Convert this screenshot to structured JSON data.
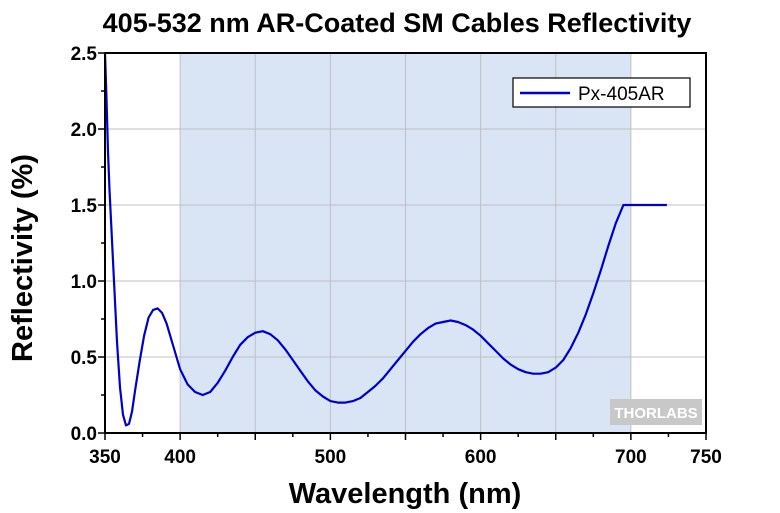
{
  "chart_data": {
    "type": "line",
    "title": "405-532 nm AR-Coated SM Cables Reflectivity",
    "xlabel": "Wavelength (nm)",
    "ylabel": "Reflectivity (%)",
    "xlim": [
      350,
      750
    ],
    "ylim": [
      0,
      2.5
    ],
    "x_ticks": [
      350,
      400,
      500,
      600,
      700,
      750
    ],
    "x_tick_labels": [
      "350",
      "400",
      "500",
      "600",
      "700",
      "750"
    ],
    "y_ticks": [
      0,
      0.5,
      1.0,
      1.5,
      2.0,
      2.5
    ],
    "y_tick_labels": [
      "0.0",
      "0.5",
      "1.0",
      "1.5",
      "2.0",
      "2.5"
    ],
    "grid": true,
    "legend_position": "top-right",
    "shaded_band": {
      "x_start": 400,
      "x_end": 700,
      "color": "#d9e4f5"
    },
    "series": [
      {
        "name": "Px-405AR",
        "color": "#0000cc",
        "x": [
          350,
          351,
          352,
          353,
          354,
          356,
          358,
          360,
          362,
          364,
          366,
          368,
          370,
          373,
          376,
          379,
          382,
          385,
          388,
          391,
          394,
          397,
          400,
          405,
          410,
          415,
          420,
          425,
          430,
          435,
          440,
          445,
          450,
          455,
          460,
          465,
          470,
          475,
          480,
          485,
          490,
          495,
          500,
          505,
          510,
          515,
          520,
          525,
          530,
          535,
          540,
          545,
          550,
          555,
          560,
          565,
          570,
          575,
          580,
          585,
          590,
          595,
          600,
          605,
          610,
          615,
          620,
          625,
          630,
          635,
          640,
          645,
          650,
          655,
          660,
          665,
          670,
          675,
          680,
          685,
          690,
          695,
          700,
          705,
          710,
          715,
          720,
          724
        ],
        "y": [
          2.5,
          2.2,
          1.85,
          1.6,
          1.4,
          1.0,
          0.6,
          0.3,
          0.12,
          0.05,
          0.06,
          0.14,
          0.28,
          0.47,
          0.64,
          0.76,
          0.81,
          0.82,
          0.79,
          0.72,
          0.62,
          0.52,
          0.42,
          0.32,
          0.27,
          0.25,
          0.27,
          0.33,
          0.41,
          0.5,
          0.58,
          0.63,
          0.66,
          0.67,
          0.65,
          0.61,
          0.55,
          0.48,
          0.41,
          0.34,
          0.28,
          0.24,
          0.21,
          0.2,
          0.2,
          0.21,
          0.23,
          0.27,
          0.31,
          0.36,
          0.42,
          0.48,
          0.54,
          0.6,
          0.65,
          0.69,
          0.72,
          0.73,
          0.74,
          0.73,
          0.71,
          0.68,
          0.64,
          0.59,
          0.54,
          0.49,
          0.45,
          0.42,
          0.4,
          0.39,
          0.39,
          0.4,
          0.43,
          0.48,
          0.56,
          0.66,
          0.78,
          0.92,
          1.07,
          1.23,
          1.38,
          1.5,
          1.5,
          1.5,
          1.5,
          1.5,
          1.5,
          1.5
        ]
      }
    ]
  },
  "watermark": "THORLABS"
}
